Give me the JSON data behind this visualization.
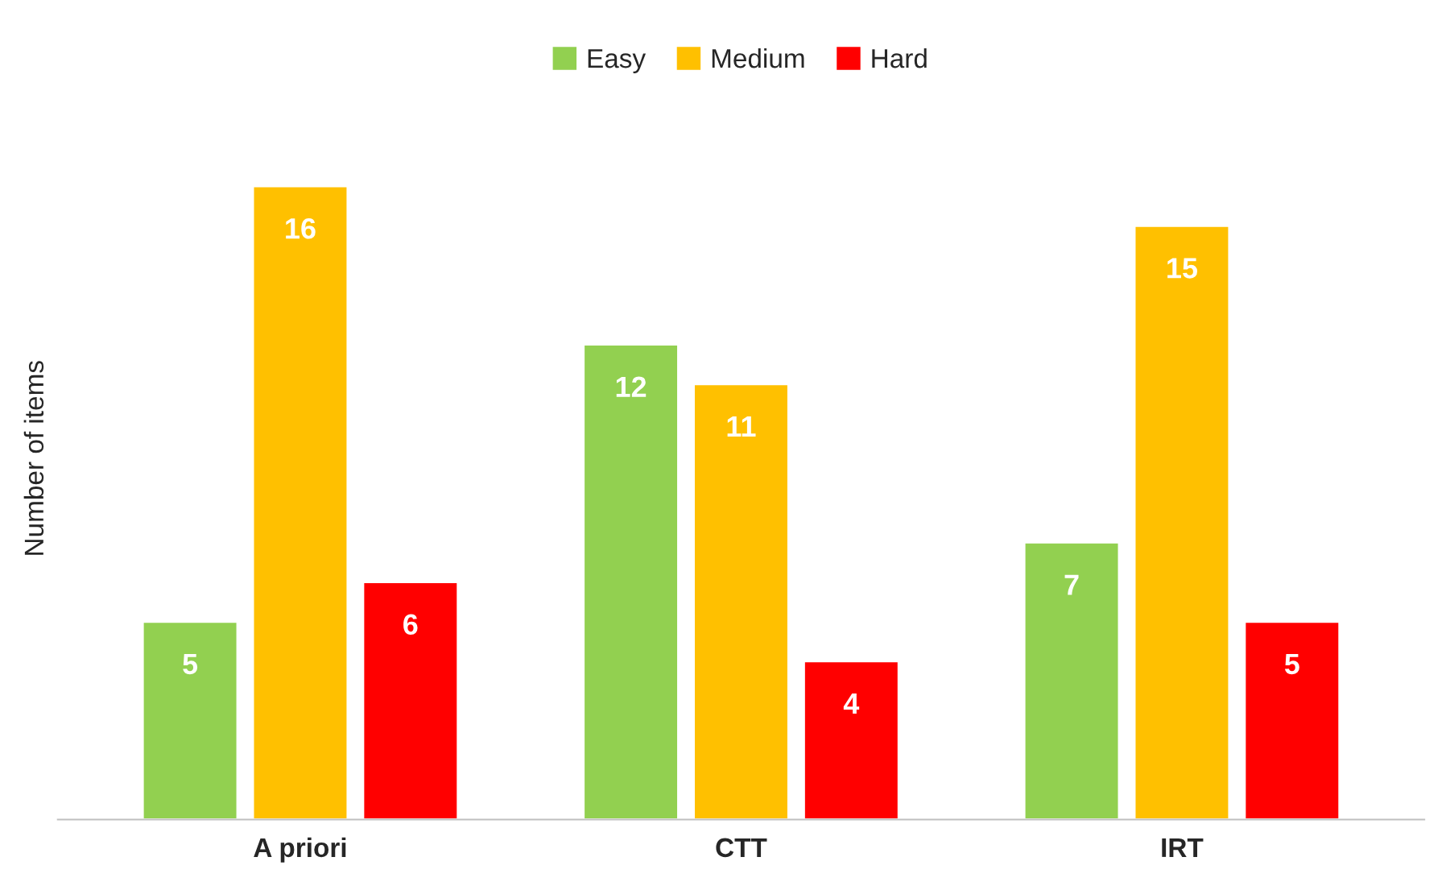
{
  "chart_data": {
    "type": "bar",
    "ylabel": "Number of items",
    "categories": [
      "A priori",
      "CTT",
      "IRT"
    ],
    "series": [
      {
        "name": "Easy",
        "color": "#92d050",
        "values": [
          5,
          12,
          7
        ]
      },
      {
        "name": "Medium",
        "color": "#ffc000",
        "values": [
          16,
          11,
          15
        ]
      },
      {
        "name": "Hard",
        "color": "#ff0000",
        "values": [
          6,
          4,
          5
        ]
      }
    ],
    "data_labels": true,
    "legend": "top",
    "grid": false
  }
}
